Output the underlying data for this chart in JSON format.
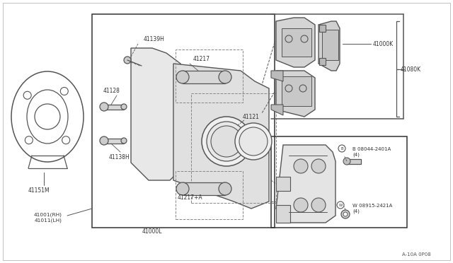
{
  "background_color": "#ffffff",
  "line_color": "#555555",
  "border_color": "#333333",
  "fig_width": 6.4,
  "fig_height": 3.72,
  "dpi": 100,
  "diagram_code": "A-10A 0P08",
  "parts": {
    "41001RH_41011LH": "41001(RH)\n41011(LH)",
    "41151M": "41151M",
    "41139H": "41139H",
    "41217": "41217",
    "41128": "41128",
    "41121": "41121",
    "41138H": "41138H",
    "41217A": "41217+A",
    "41000L": "41000L",
    "41000K": "41000K",
    "41080K": "41080K",
    "B08044": "B 08044-2401A\n(4)",
    "W08915": "W 08915-2421A\n(4)"
  }
}
